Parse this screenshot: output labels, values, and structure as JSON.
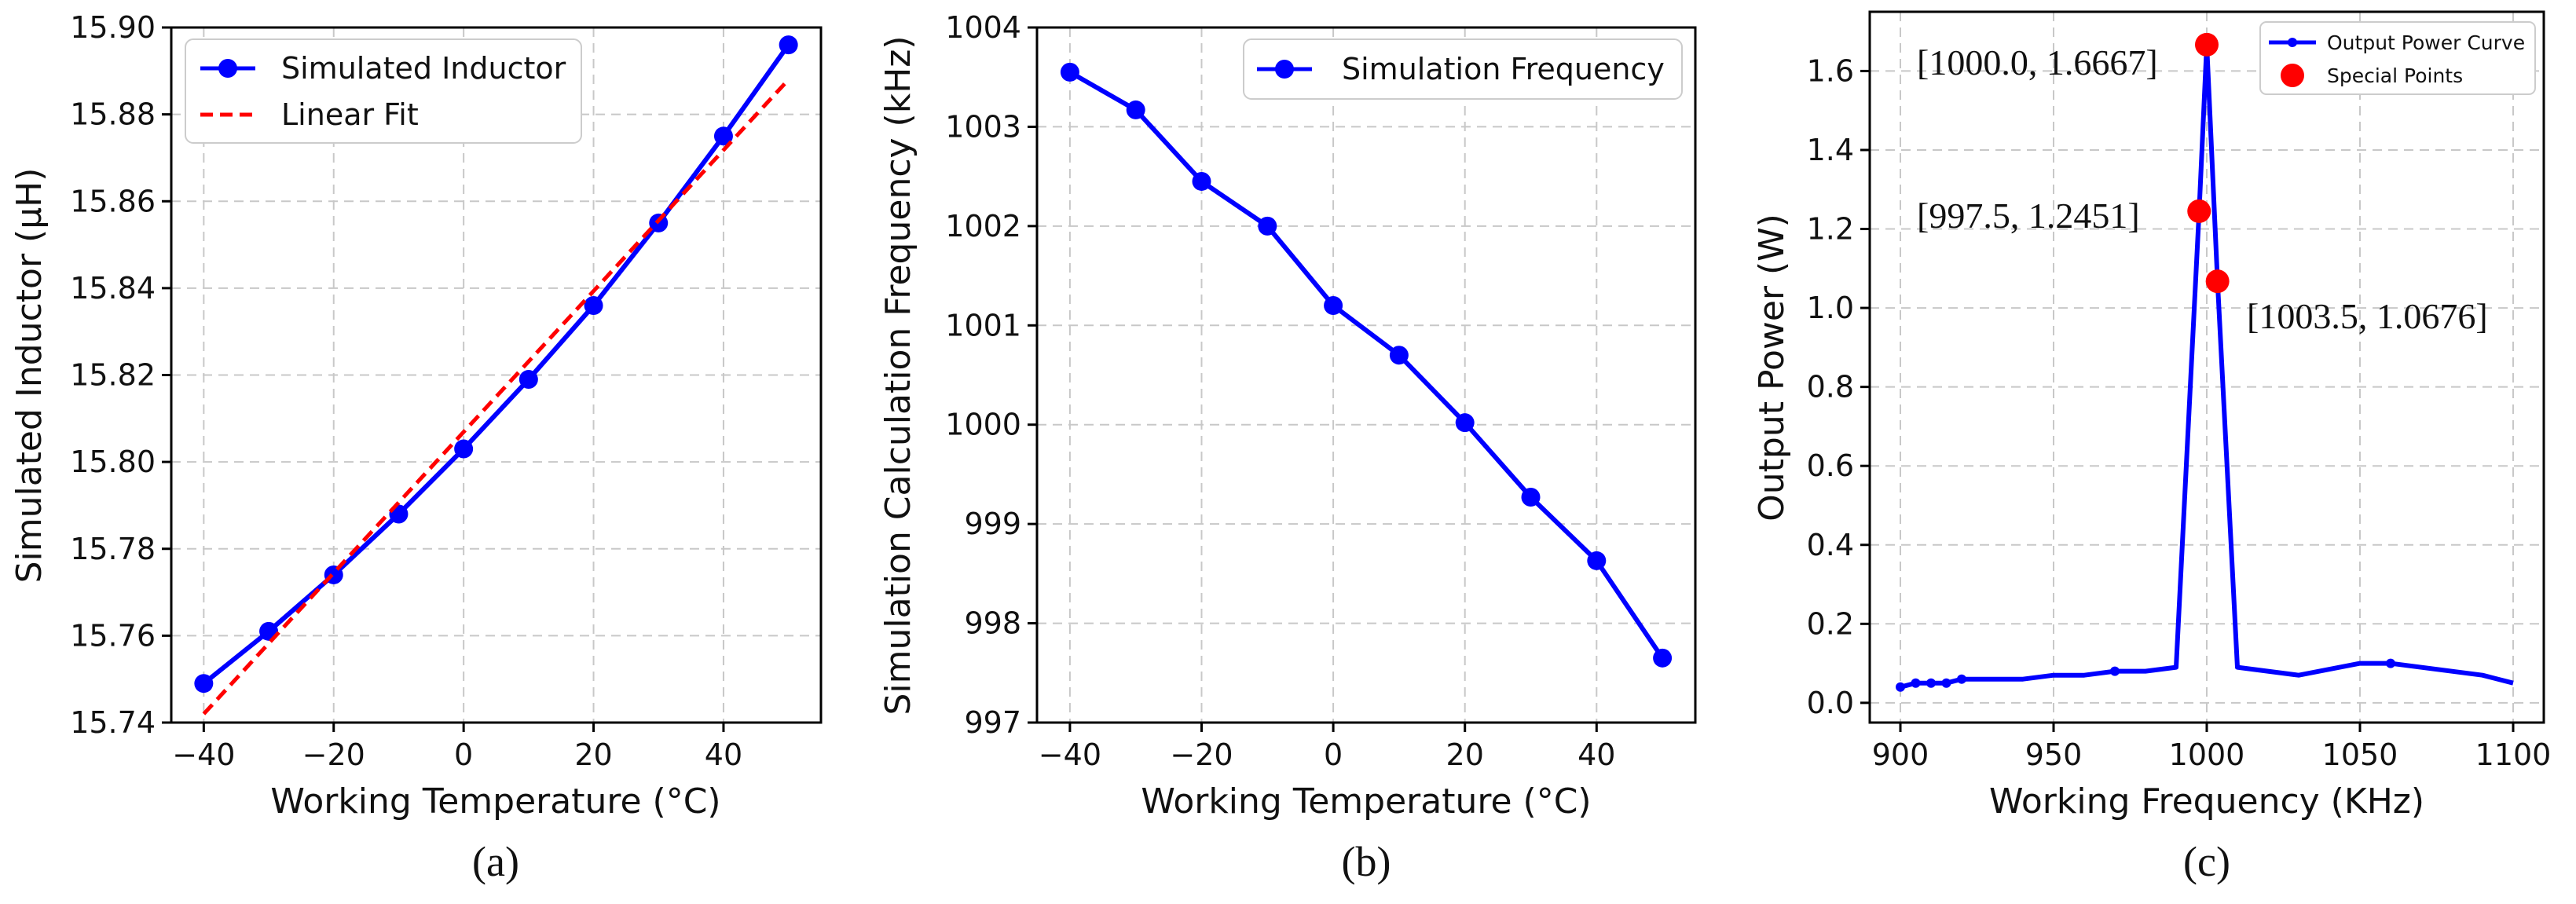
{
  "chart_data": [
    {
      "id": "a",
      "type": "line",
      "caption": "(a)",
      "xlabel": "Working Temperature (°C)",
      "ylabel": "Simulated Inductor (μH)",
      "xlim": [
        -45,
        55
      ],
      "ylim": [
        15.74,
        15.9
      ],
      "xticks": [
        -40,
        -20,
        0,
        20,
        40
      ],
      "xtick_labels": [
        "−40",
        "−20",
        "0",
        "20",
        "40"
      ],
      "yticks": [
        15.74,
        15.76,
        15.78,
        15.8,
        15.82,
        15.84,
        15.86,
        15.88,
        15.9
      ],
      "ytick_labels": [
        "15.74",
        "15.76",
        "15.78",
        "15.80",
        "15.82",
        "15.84",
        "15.86",
        "15.88",
        "15.90"
      ],
      "grid": true,
      "legend_position": "top-left",
      "series": [
        {
          "name": "Simulated Inductor",
          "style": "solid-markers",
          "color": "#0000ff",
          "x": [
            -40,
            -30,
            -20,
            -10,
            0,
            10,
            20,
            30,
            40,
            50
          ],
          "y": [
            15.749,
            15.761,
            15.774,
            15.788,
            15.803,
            15.819,
            15.836,
            15.855,
            15.875,
            15.896
          ]
        },
        {
          "name": "Linear Fit",
          "style": "dashed",
          "color": "#ff0000",
          "x": [
            -40,
            50
          ],
          "y": [
            15.742,
            15.888
          ]
        }
      ]
    },
    {
      "id": "b",
      "type": "line",
      "caption": "(b)",
      "xlabel": "Working Temperature (°C)",
      "ylabel": "Simulation Calculation Frequency (kHz)",
      "xlim": [
        -45,
        55
      ],
      "ylim": [
        997,
        1004
      ],
      "xticks": [
        -40,
        -20,
        0,
        20,
        40
      ],
      "xtick_labels": [
        "−40",
        "−20",
        "0",
        "20",
        "40"
      ],
      "yticks": [
        997,
        998,
        999,
        1000,
        1001,
        1002,
        1003,
        1004
      ],
      "ytick_labels": [
        "997",
        "998",
        "999",
        "1000",
        "1001",
        "1002",
        "1003",
        "1004"
      ],
      "grid": true,
      "legend_position": "top-right",
      "series": [
        {
          "name": "Simulation Frequency",
          "style": "solid-markers",
          "color": "#0000ff",
          "x": [
            -40,
            -30,
            -20,
            -10,
            0,
            10,
            20,
            30,
            40,
            50
          ],
          "y": [
            1003.55,
            1003.17,
            1002.45,
            1002.0,
            1001.2,
            1000.7,
            1000.02,
            999.27,
            998.63,
            997.65
          ]
        }
      ]
    },
    {
      "id": "c",
      "type": "line",
      "caption": "(c)",
      "xlabel": "Working Frequency (KHz)",
      "ylabel": "Output Power (W)",
      "xlim": [
        890,
        1110
      ],
      "ylim": [
        -0.05,
        1.75
      ],
      "xticks": [
        900,
        950,
        1000,
        1050,
        1100
      ],
      "xtick_labels": [
        "900",
        "950",
        "1000",
        "1050",
        "1100"
      ],
      "yticks": [
        0.0,
        0.2,
        0.4,
        0.6,
        0.8,
        1.0,
        1.2,
        1.4,
        1.6
      ],
      "ytick_labels": [
        "0.0",
        "0.2",
        "0.4",
        "0.6",
        "0.8",
        "1.0",
        "1.2",
        "1.4",
        "1.6"
      ],
      "grid": true,
      "legend_position": "top-right",
      "series": [
        {
          "name": "Output Power Curve",
          "style": "solid-small-markers",
          "color": "#0000ff",
          "x": [
            900,
            905,
            910,
            915,
            920,
            940,
            950,
            960,
            970,
            980,
            990,
            997.5,
            1000,
            1003.5,
            1010,
            1030,
            1050,
            1060,
            1090,
            1100
          ],
          "y": [
            0.04,
            0.05,
            0.05,
            0.05,
            0.06,
            0.06,
            0.07,
            0.07,
            0.08,
            0.08,
            0.09,
            1.2451,
            1.6667,
            1.0676,
            0.09,
            0.07,
            0.1,
            0.1,
            0.07,
            0.05
          ],
          "marker_x": [
            900,
            905,
            910,
            915,
            920,
            970,
            1060
          ]
        },
        {
          "name": "Special Points",
          "style": "scatter",
          "color": "#ff0000",
          "x": [
            1000.0,
            997.5,
            1003.5
          ],
          "y": [
            1.6667,
            1.2451,
            1.0676
          ]
        }
      ],
      "annotations": [
        "[1000.0, 1.6667]",
        "[997.5, 1.2451]",
        "[1003.5, 1.0676]"
      ]
    }
  ]
}
